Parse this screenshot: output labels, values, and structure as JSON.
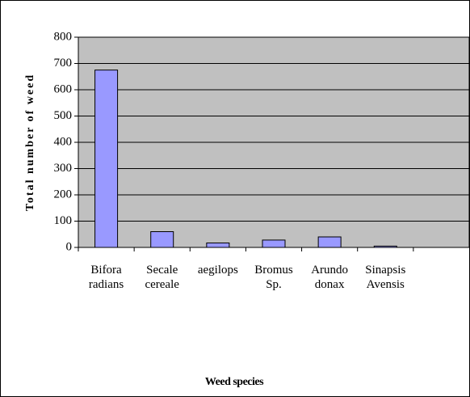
{
  "chart_data": {
    "type": "bar",
    "xlabel": "Weed species",
    "ylabel": "Total number of weed",
    "categories": [
      "Bifora radians",
      "Secale cereale",
      "aegilops",
      "Bromus Sp.",
      "Arundo donax",
      "Sinapsis Avensis",
      null
    ],
    "values": [
      675,
      60,
      17,
      28,
      40,
      5,
      null
    ],
    "color": "#9999ff",
    "ylim": [
      0,
      800
    ],
    "yticks": [
      0,
      100,
      200,
      300,
      400,
      500,
      600,
      700,
      800
    ],
    "grid": true
  }
}
